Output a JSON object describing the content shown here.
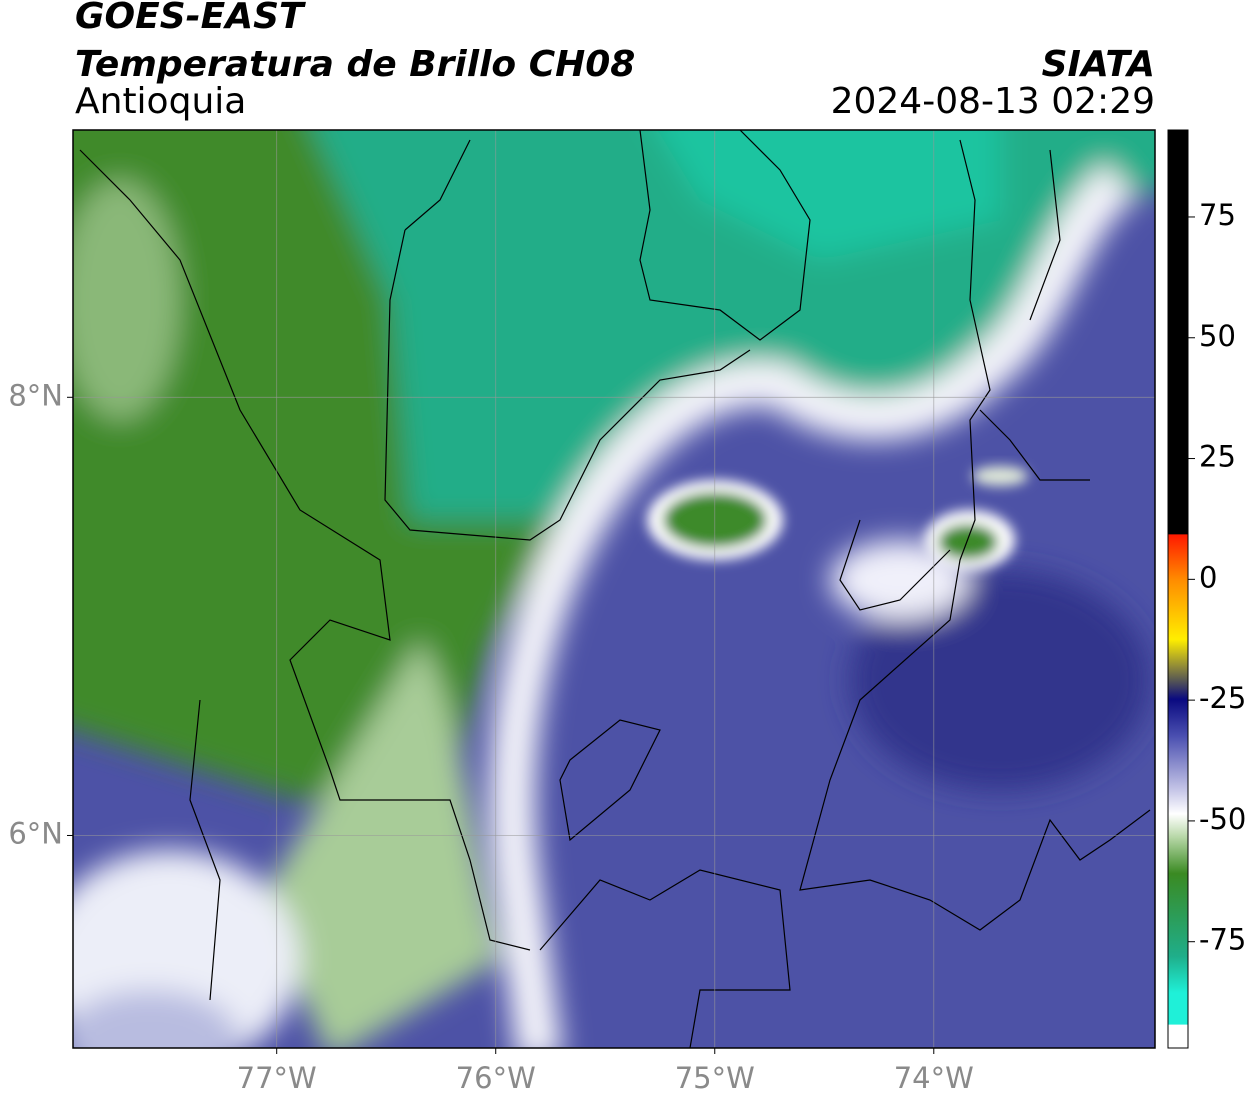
{
  "header": {
    "title": "GOES-EAST",
    "subtitle": "Temperatura de Brillo CH08",
    "region": "Antioquia",
    "source": "SIATA",
    "datetime": "2024-08-13 02:29"
  },
  "map": {
    "xlim": [
      -77.93,
      -72.99
    ],
    "ylim": [
      5.03,
      9.22
    ],
    "xticks": [
      {
        "value": -77,
        "label": "77°W"
      },
      {
        "value": -76,
        "label": "76°W"
      },
      {
        "value": -75,
        "label": "75°W"
      },
      {
        "value": -74,
        "label": "74°W"
      }
    ],
    "yticks": [
      {
        "value": 8,
        "label": "8°N"
      },
      {
        "value": 6,
        "label": "6°N"
      }
    ],
    "grid": true
  },
  "colorbar": {
    "lim": [
      -97,
      93
    ],
    "ticks": [
      75,
      50,
      25,
      0,
      -25,
      -50,
      -75
    ]
  }
}
